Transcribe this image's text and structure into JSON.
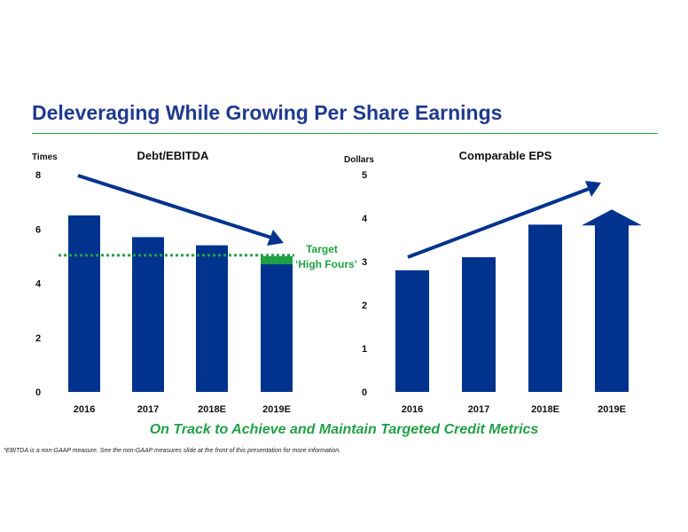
{
  "slide": {
    "title": "Deleveraging While Growing Per Share Earnings",
    "banner": "On Track to Achieve and Maintain Targeted Credit Metrics",
    "footnote": "*EBITDA is a non-GAAP measure.  See the non-GAAP measures slide at the front of this presentation for more information."
  },
  "colors": {
    "bar": "#00338d",
    "accent_green": "#21a046",
    "title": "#1f3a8f"
  },
  "chart_data": [
    {
      "type": "bar",
      "title": "Debt/EBITDA",
      "ylabel": "Times",
      "categories": [
        "2016",
        "2017",
        "2018E",
        "2019E"
      ],
      "values": [
        6.5,
        5.7,
        5.4,
        4.9
      ],
      "ylim": [
        0,
        8
      ],
      "yticks": [
        0,
        2,
        4,
        6,
        8
      ],
      "target": {
        "value": 5.0,
        "label_line1": "Target",
        "label_line2": "‘High Fours’",
        "band": [
          4.7,
          5.0
        ]
      },
      "trend": "down"
    },
    {
      "type": "bar",
      "title": "Comparable EPS",
      "ylabel": "Dollars",
      "categories": [
        "2016",
        "2017",
        "2018E",
        "2019E"
      ],
      "values": [
        2.8,
        3.1,
        3.85,
        4.2
      ],
      "ylim": [
        0,
        5
      ],
      "yticks": [
        0,
        1,
        2,
        3,
        4,
        5
      ],
      "last_bar_arrow": true,
      "trend": "up"
    }
  ]
}
